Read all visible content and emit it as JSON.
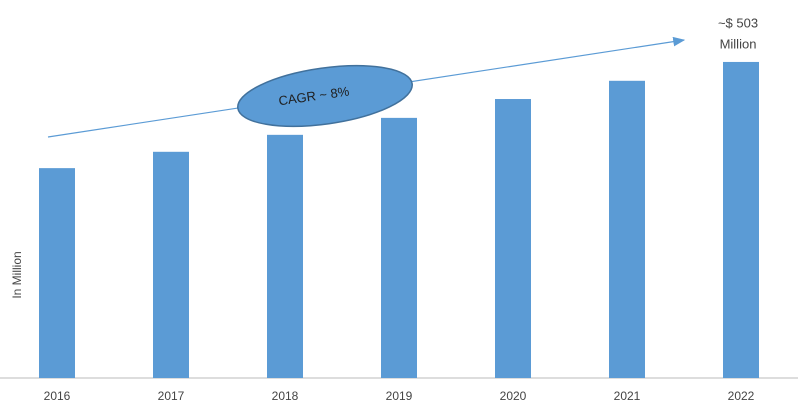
{
  "chart_data": {
    "type": "bar",
    "y_label": "In Million",
    "categories": [
      "2016",
      "2017",
      "2018",
      "2019",
      "2020",
      "2021",
      "2022"
    ],
    "values": [
      334,
      360,
      387,
      414,
      444,
      473,
      503
    ],
    "color": "#5b9bd5",
    "ylim": [
      0,
      600
    ],
    "annotations": [
      "CAGR ~ 8%",
      "~$ 503",
      "Million"
    ]
  }
}
